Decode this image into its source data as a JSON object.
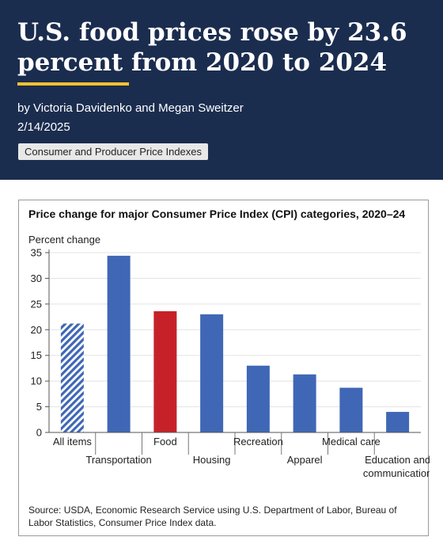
{
  "header": {
    "headline": "U.S. food prices rose by 23.6 percent from 2020 to 2024",
    "byline": "by Victoria Davidenko and Megan Sweitzer",
    "date": "2/14/2025",
    "tag": "Consumer and Producer Price Indexes"
  },
  "colors": {
    "header_bg": "#1b2d4f",
    "accent_rule": "#f2c232",
    "bar_blue": "#3f67b5",
    "bar_red": "#c62128"
  },
  "chart_data": {
    "type": "bar",
    "title": "Price change for major Consumer Price Index (CPI) categories, 2020–24",
    "ylabel": "Percent change",
    "xlabel": "",
    "ylim": [
      0,
      35
    ],
    "yticks": [
      0,
      5,
      10,
      15,
      20,
      25,
      30,
      35
    ],
    "grid": true,
    "categories": [
      "All items",
      "Transportation",
      "Food",
      "Housing",
      "Recreation",
      "Apparel",
      "Medical care",
      "Education and communication"
    ],
    "values": [
      21.2,
      34.4,
      23.6,
      23.0,
      13.0,
      11.3,
      8.7,
      4.0
    ],
    "bar_styles": [
      "hatched",
      "solid",
      "highlight",
      "solid",
      "solid",
      "solid",
      "solid",
      "solid"
    ],
    "label_rows": [
      "top",
      "bottom",
      "top",
      "bottom",
      "top",
      "bottom",
      "top",
      "bottom"
    ],
    "source": "Source: USDA, Economic Research Service using U.S. Department of Labor, Bureau of Labor Statistics, Consumer Price Index data."
  }
}
